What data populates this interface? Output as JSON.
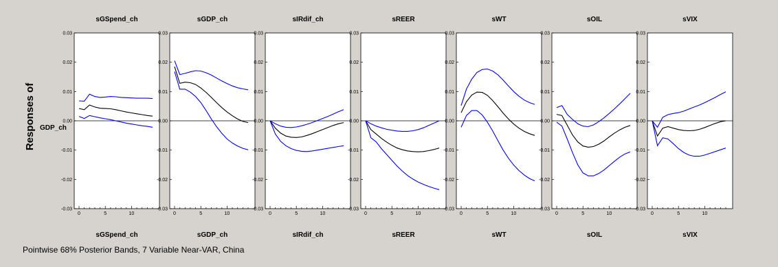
{
  "figure": {
    "side_label": "Responses of",
    "row_label": "GDP_ch",
    "footer": "Pointwise 68% Posterior Bands, 7 Variable Near-VAR, China"
  },
  "colors": {
    "median": "#000000",
    "bands": "#0000ff",
    "zero": "#000000",
    "background": "#d6d3ce",
    "panel": "#ffffff"
  },
  "chart_data": [
    {
      "type": "line",
      "title": "sGSpend_ch",
      "x": [
        0,
        1,
        2,
        3,
        4,
        5,
        6,
        7,
        8,
        9,
        10,
        11,
        12,
        13,
        14
      ],
      "ylim": [
        -0.03,
        0.03
      ],
      "xlim": [
        0,
        14
      ],
      "y_ticks": [
        "0.03",
        "0.02",
        "0.01",
        "0.00",
        "-0.01",
        "-0.02",
        "-0.03"
      ],
      "x_ticks": [
        "0",
        "5",
        "10"
      ],
      "series": [
        {
          "role": "upper",
          "values": [
            0.0068,
            0.0067,
            0.0091,
            0.0083,
            0.008,
            0.0081,
            0.0083,
            0.0082,
            0.008,
            0.0079,
            0.0078,
            0.0077,
            0.0077,
            0.0077,
            0.0076
          ]
        },
        {
          "role": "median",
          "values": [
            0.0042,
            0.0038,
            0.0054,
            0.0047,
            0.0043,
            0.0042,
            0.0041,
            0.0038,
            0.0034,
            0.003,
            0.0027,
            0.0024,
            0.0021,
            0.0018,
            0.0016
          ]
        },
        {
          "role": "lower",
          "values": [
            0.0015,
            0.0008,
            0.0018,
            0.0014,
            0.001,
            0.0007,
            0.0004,
            0.0,
            -0.0004,
            -0.0008,
            -0.0011,
            -0.0014,
            -0.0017,
            -0.0019,
            -0.0022
          ]
        }
      ]
    },
    {
      "type": "line",
      "title": "sGDP_ch",
      "x": [
        0,
        1,
        2,
        3,
        4,
        5,
        6,
        7,
        8,
        9,
        10,
        11,
        12,
        13,
        14
      ],
      "ylim": [
        -0.03,
        0.03
      ],
      "xlim": [
        0,
        14
      ],
      "y_ticks": [
        "0.03",
        "0.02",
        "0.01",
        "0.00",
        "-0.01",
        "-0.02",
        "-0.03"
      ],
      "x_ticks": [
        "0",
        "5",
        "10"
      ],
      "series": [
        {
          "role": "upper",
          "values": [
            0.0205,
            0.0158,
            0.0162,
            0.0167,
            0.0171,
            0.017,
            0.0164,
            0.0156,
            0.0146,
            0.0136,
            0.0127,
            0.0119,
            0.0113,
            0.0109,
            0.0106
          ]
        },
        {
          "role": "median",
          "values": [
            0.0185,
            0.0128,
            0.0132,
            0.013,
            0.0124,
            0.0112,
            0.0097,
            0.008,
            0.0062,
            0.0045,
            0.003,
            0.0017,
            0.0006,
            -0.0002,
            -0.0006
          ]
        },
        {
          "role": "lower",
          "values": [
            0.0168,
            0.0108,
            0.0108,
            0.0098,
            0.0083,
            0.0062,
            0.0035,
            0.0006,
            -0.002,
            -0.0043,
            -0.0062,
            -0.0076,
            -0.0086,
            -0.0094,
            -0.0099
          ]
        }
      ]
    },
    {
      "type": "line",
      "title": "sIRdif_ch",
      "x": [
        0,
        1,
        2,
        3,
        4,
        5,
        6,
        7,
        8,
        9,
        10,
        11,
        12,
        13,
        14
      ],
      "ylim": [
        -0.03,
        0.03
      ],
      "xlim": [
        0,
        14
      ],
      "y_ticks": [
        "0.03",
        "0.02",
        "0.01",
        "0.00",
        "-0.01",
        "-0.02",
        "-0.03"
      ],
      "x_ticks": [
        "0",
        "5",
        "10"
      ],
      "series": [
        {
          "role": "upper",
          "values": [
            0.0,
            -0.001,
            -0.0018,
            -0.0022,
            -0.0023,
            -0.0021,
            -0.0017,
            -0.0012,
            -0.0006,
            0.0001,
            0.0008,
            0.0015,
            0.0023,
            0.0031,
            0.0038
          ]
        },
        {
          "role": "median",
          "values": [
            0.0,
            -0.0025,
            -0.0042,
            -0.0052,
            -0.0056,
            -0.0057,
            -0.0055,
            -0.005,
            -0.0044,
            -0.0037,
            -0.003,
            -0.0023,
            -0.0016,
            -0.001,
            -0.0006
          ]
        },
        {
          "role": "lower",
          "values": [
            0.0,
            -0.0045,
            -0.007,
            -0.0085,
            -0.0095,
            -0.0101,
            -0.0104,
            -0.0105,
            -0.0103,
            -0.01,
            -0.0097,
            -0.0094,
            -0.0091,
            -0.0088,
            -0.0085
          ]
        }
      ]
    },
    {
      "type": "line",
      "title": "sREER",
      "x": [
        0,
        1,
        2,
        3,
        4,
        5,
        6,
        7,
        8,
        9,
        10,
        11,
        12,
        13,
        14
      ],
      "ylim": [
        -0.03,
        0.03
      ],
      "xlim": [
        0,
        14
      ],
      "y_ticks": [
        "0.03",
        "0.02",
        "0.01",
        "0.00",
        "-0.01",
        "-0.02",
        "-0.03"
      ],
      "x_ticks": [
        "0",
        "5",
        "10"
      ],
      "series": [
        {
          "role": "upper",
          "values": [
            0.0,
            -0.001,
            -0.0018,
            -0.0024,
            -0.0029,
            -0.0032,
            -0.0035,
            -0.0036,
            -0.0036,
            -0.0034,
            -0.003,
            -0.0024,
            -0.0016,
            -0.0008,
            0.0
          ]
        },
        {
          "role": "median",
          "values": [
            0.0,
            -0.003,
            -0.0045,
            -0.006,
            -0.0073,
            -0.0084,
            -0.0093,
            -0.0099,
            -0.0103,
            -0.0105,
            -0.0106,
            -0.0105,
            -0.0102,
            -0.0098,
            -0.0093
          ]
        },
        {
          "role": "lower",
          "values": [
            0.0,
            -0.0058,
            -0.0072,
            -0.0095,
            -0.0115,
            -0.0135,
            -0.0155,
            -0.0172,
            -0.0187,
            -0.0199,
            -0.0209,
            -0.0217,
            -0.0224,
            -0.023,
            -0.0235
          ]
        }
      ]
    },
    {
      "type": "line",
      "title": "sWT",
      "x": [
        0,
        1,
        2,
        3,
        4,
        5,
        6,
        7,
        8,
        9,
        10,
        11,
        12,
        13,
        14
      ],
      "ylim": [
        -0.03,
        0.03
      ],
      "xlim": [
        0,
        14
      ],
      "y_ticks": [
        "0.03",
        "0.02",
        "0.01",
        "0.00",
        "-0.01",
        "-0.02",
        "-0.03"
      ],
      "x_ticks": [
        "0",
        "5",
        "10"
      ],
      "series": [
        {
          "role": "upper",
          "values": [
            0.0052,
            0.0108,
            0.0142,
            0.0165,
            0.0175,
            0.0177,
            0.017,
            0.0157,
            0.0139,
            0.0119,
            0.01,
            0.0084,
            0.0071,
            0.0062,
            0.0056
          ]
        },
        {
          "role": "median",
          "values": [
            0.0028,
            0.0065,
            0.0088,
            0.0098,
            0.0097,
            0.0087,
            0.0069,
            0.0048,
            0.0026,
            0.0006,
            -0.0011,
            -0.0025,
            -0.0036,
            -0.0044,
            -0.005
          ]
        },
        {
          "role": "lower",
          "values": [
            -0.0022,
            0.0018,
            0.0035,
            0.0035,
            0.002,
            -0.0005,
            -0.0035,
            -0.0068,
            -0.01,
            -0.0128,
            -0.0151,
            -0.017,
            -0.0185,
            -0.0197,
            -0.0205
          ]
        }
      ]
    },
    {
      "type": "line",
      "title": "sOIL",
      "x": [
        0,
        1,
        2,
        3,
        4,
        5,
        6,
        7,
        8,
        9,
        10,
        11,
        12,
        13,
        14
      ],
      "ylim": [
        -0.03,
        0.03
      ],
      "xlim": [
        0,
        14
      ],
      "y_ticks": [
        "0.03",
        "0.02",
        "0.01",
        "0.00",
        "-0.01",
        "-0.02",
        "-0.03"
      ],
      "x_ticks": [
        "0",
        "5",
        "10"
      ],
      "series": [
        {
          "role": "upper",
          "values": [
            0.0045,
            0.0052,
            0.0022,
            0.0005,
            -0.001,
            -0.0018,
            -0.002,
            -0.0014,
            -0.0003,
            0.001,
            0.0025,
            0.0041,
            0.0058,
            0.0076,
            0.0094
          ]
        },
        {
          "role": "median",
          "values": [
            0.0022,
            0.0018,
            -0.0015,
            -0.0048,
            -0.0072,
            -0.0086,
            -0.009,
            -0.0088,
            -0.008,
            -0.0069,
            -0.0055,
            -0.0042,
            -0.0031,
            -0.0022,
            -0.0016
          ]
        },
        {
          "role": "lower",
          "values": [
            -0.0005,
            -0.0018,
            -0.0062,
            -0.0108,
            -0.015,
            -0.0178,
            -0.0188,
            -0.0188,
            -0.018,
            -0.0168,
            -0.0153,
            -0.0138,
            -0.0124,
            -0.0113,
            -0.0106
          ]
        }
      ]
    },
    {
      "type": "line",
      "title": "sVIX",
      "x": [
        0,
        1,
        2,
        3,
        4,
        5,
        6,
        7,
        8,
        9,
        10,
        11,
        12,
        13,
        14
      ],
      "ylim": [
        -0.03,
        0.03
      ],
      "xlim": [
        0,
        14
      ],
      "y_ticks": [
        "0.03",
        "0.02",
        "0.01",
        "0.00",
        "-0.01",
        "-0.02",
        "-0.03"
      ],
      "x_ticks": [
        "0",
        "5",
        "10"
      ],
      "series": [
        {
          "role": "upper",
          "values": [
            0.0,
            -0.0022,
            0.0012,
            0.0021,
            0.0025,
            0.0028,
            0.0033,
            0.004,
            0.0047,
            0.0054,
            0.0062,
            0.0071,
            0.008,
            0.009,
            0.0099
          ]
        },
        {
          "role": "median",
          "values": [
            0.0,
            -0.0052,
            -0.0025,
            -0.002,
            -0.0025,
            -0.003,
            -0.0033,
            -0.0034,
            -0.0033,
            -0.0029,
            -0.0023,
            -0.0016,
            -0.0009,
            -0.0003,
            0.0
          ]
        },
        {
          "role": "lower",
          "values": [
            0.0,
            -0.0085,
            -0.0058,
            -0.0062,
            -0.0078,
            -0.0095,
            -0.0108,
            -0.0117,
            -0.0121,
            -0.0121,
            -0.0117,
            -0.0111,
            -0.0105,
            -0.0099,
            -0.0093
          ]
        }
      ]
    }
  ]
}
